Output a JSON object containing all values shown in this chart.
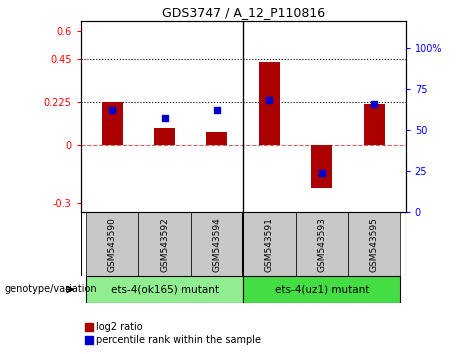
{
  "title": "GDS3747 / A_12_P110816",
  "samples": [
    "GSM543590",
    "GSM543592",
    "GSM543594",
    "GSM543591",
    "GSM543593",
    "GSM543595"
  ],
  "log2_ratio": [
    0.225,
    0.09,
    0.07,
    0.435,
    -0.22,
    0.215
  ],
  "percentile_rank": [
    62,
    57,
    62,
    68,
    24,
    66
  ],
  "group1_indices": [
    0,
    1,
    2
  ],
  "group2_indices": [
    3,
    4,
    5
  ],
  "group1_label": "ets-4(ok165) mutant",
  "group2_label": "ets-4(uz1) mutant",
  "group1_color": "#90EE90",
  "group2_color": "#44DD44",
  "ylim_left": [
    -0.35,
    0.65
  ],
  "ylim_right": [
    0,
    116
  ],
  "yticks_left": [
    -0.3,
    0,
    0.225,
    0.45,
    0.6
  ],
  "ytick_labels_left": [
    "-0.3",
    "0",
    "0.225",
    "0.45",
    "0.6"
  ],
  "yticks_right": [
    0,
    25,
    50,
    75,
    100
  ],
  "ytick_labels_right": [
    "0",
    "25",
    "50",
    "75",
    "100%"
  ],
  "hlines": [
    0.225,
    0.45
  ],
  "bar_color": "#AA0000",
  "dot_color": "#0000CC",
  "sample_bg_color": "#C8C8C8",
  "genotype_label": "genotype/variation",
  "legend_label1": "log2 ratio",
  "legend_label2": "percentile rank within the sample"
}
